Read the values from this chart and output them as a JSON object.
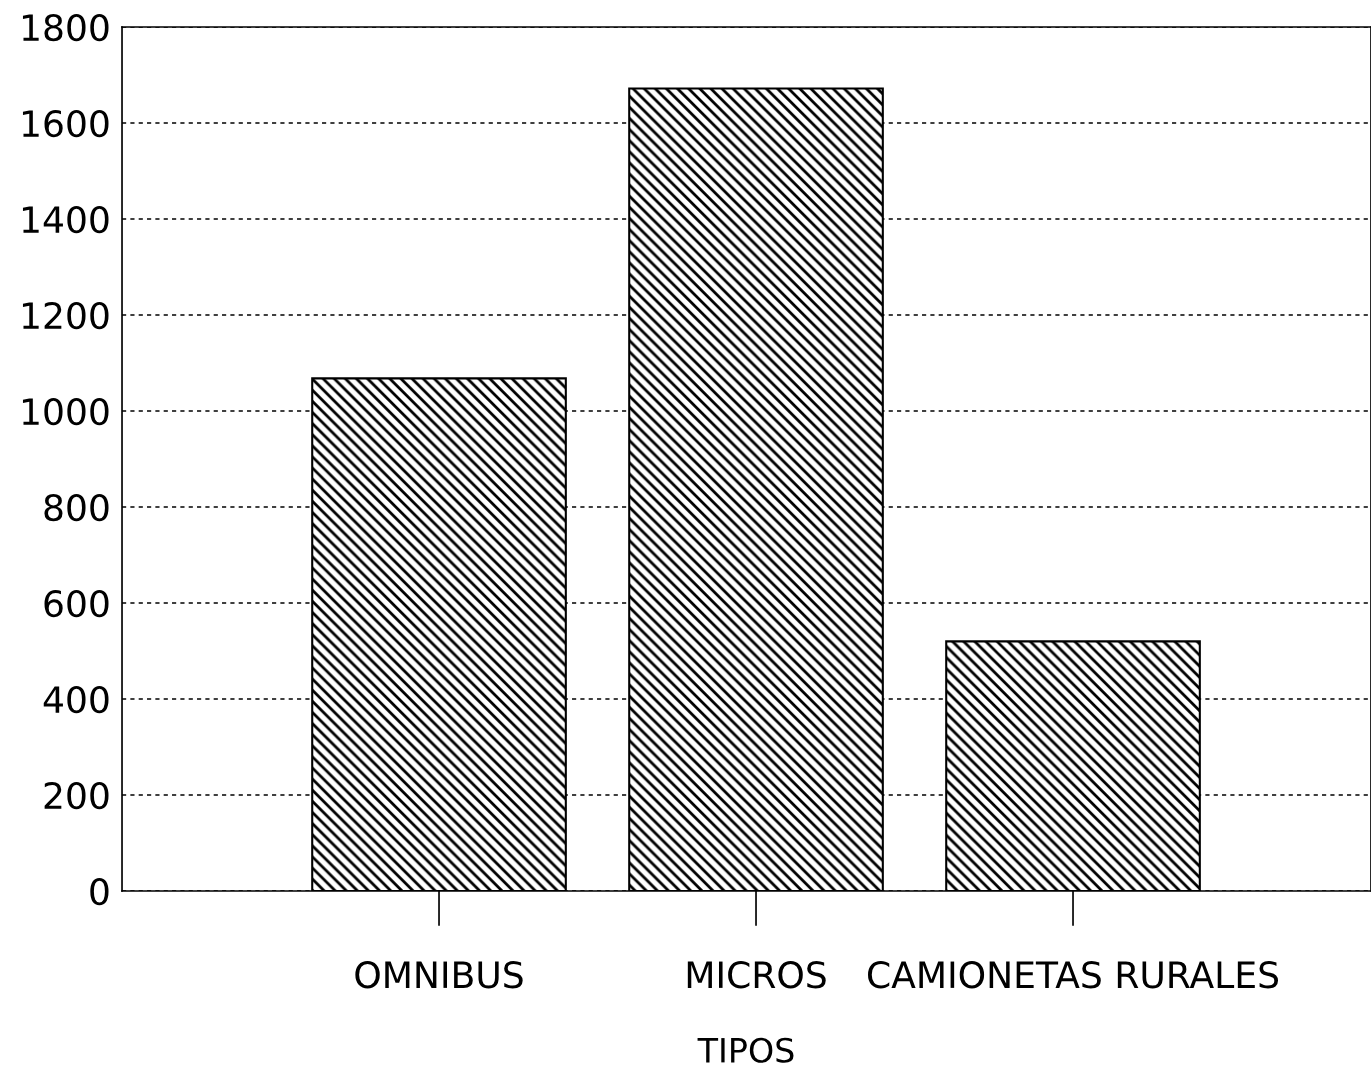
{
  "chart_data": {
    "type": "bar",
    "xlabel": "TIPOS",
    "categories": [
      "OMNIBUS",
      "MICROS",
      "CAMIONETAS RURALES"
    ],
    "values": [
      1068,
      1672,
      520
    ],
    "color": "#000000",
    "ylim": [
      0,
      1800
    ],
    "yticks": [
      0,
      200,
      400,
      600,
      800,
      1000,
      1200,
      1400,
      1600,
      1800
    ],
    "grid": "y"
  }
}
